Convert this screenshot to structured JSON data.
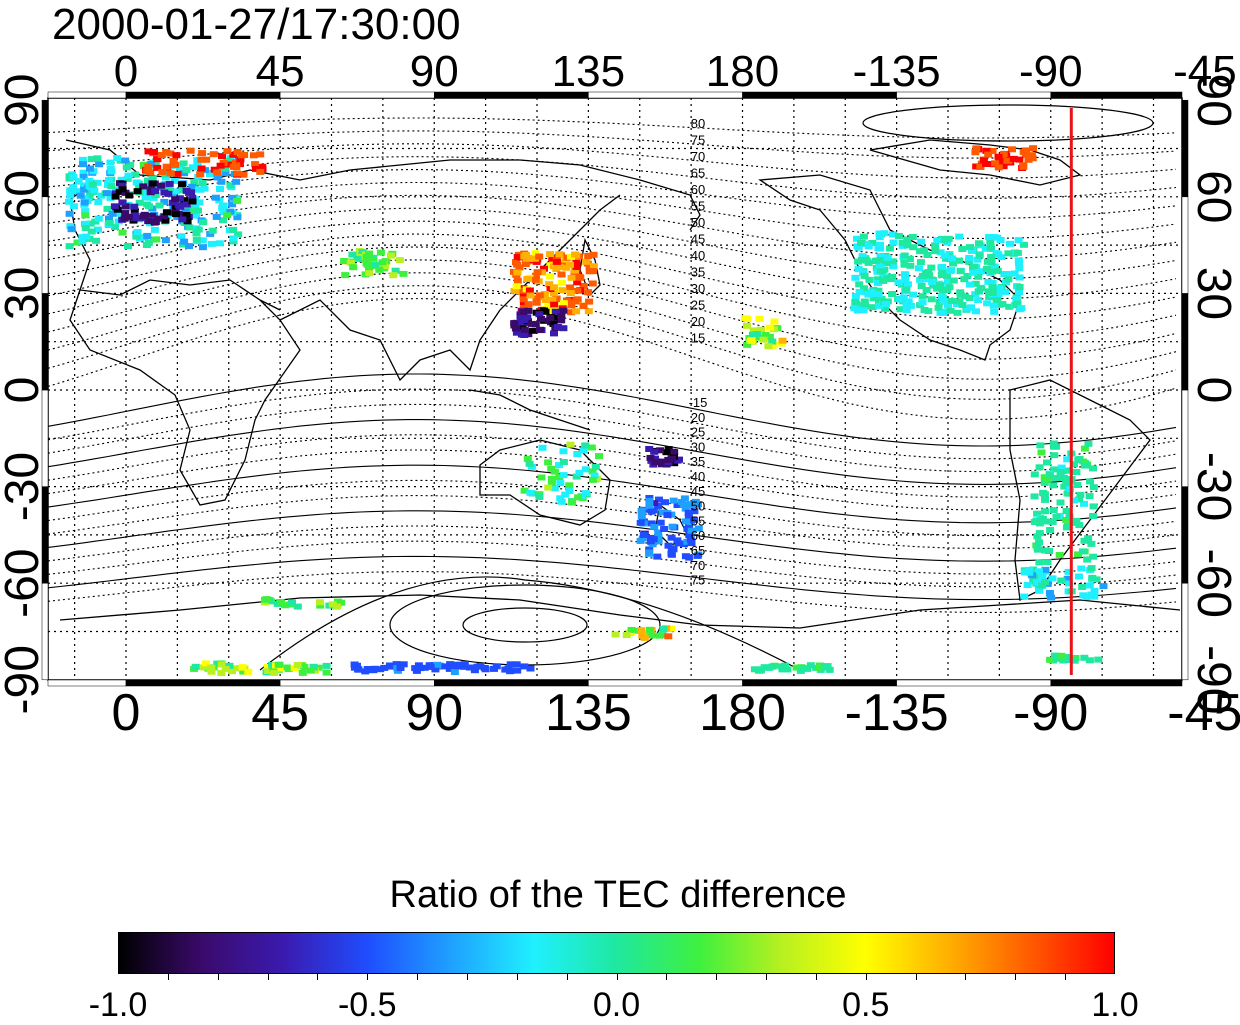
{
  "timestamp": "2000-01-27/17:30:00",
  "map": {
    "lon_ticks": [
      "0",
      "45",
      "90",
      "135",
      "180",
      "-135",
      "-90",
      "-45"
    ],
    "lat_ticks": [
      "90",
      "60",
      "30",
      "0",
      "-30",
      "-60",
      "-90"
    ],
    "contour_labels_north": [
      "80",
      "75",
      "70",
      "65",
      "60",
      "55",
      "50",
      "45",
      "40",
      "35",
      "30",
      "25",
      "20",
      "15"
    ],
    "contour_labels_south": [
      "-15",
      "20",
      "25",
      "30",
      "35",
      "40",
      "45",
      "50",
      "55",
      "60",
      "65",
      "70",
      "75"
    ],
    "terminator_longitude": -84,
    "terminator_color": "#e8141a"
  },
  "colorbar": {
    "title": "Ratio of the TEC difference",
    "tick_labels": [
      "-1.0",
      "-0.5",
      "0.0",
      "0.5",
      "1.0"
    ],
    "range": [
      -1.0,
      1.0
    ],
    "colors": [
      "#000000",
      "#3a0a6b",
      "#3a1bb0",
      "#1f4dff",
      "#1fa0ff",
      "#1ff0ff",
      "#1fe8a0",
      "#3ef03e",
      "#b8f020",
      "#ffff00",
      "#ffb000",
      "#ff5a00",
      "#ff0000"
    ]
  }
}
